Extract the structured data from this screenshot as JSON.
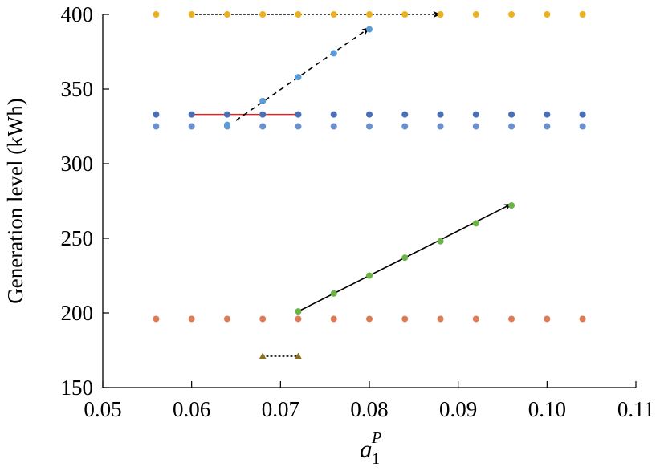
{
  "chart_data": {
    "type": "scatter",
    "title": "",
    "xlabel": {
      "base": "a",
      "subscript": "1",
      "superscript": "P"
    },
    "ylabel": "Generation level (kWh)",
    "xlim": [
      0.05,
      0.11
    ],
    "ylim": [
      150,
      400
    ],
    "x_ticks": [
      {
        "value": 0.05,
        "label": "0.05"
      },
      {
        "value": 0.06,
        "label": "0.06"
      },
      {
        "value": 0.07,
        "label": "0.07"
      },
      {
        "value": 0.08,
        "label": "0.08"
      },
      {
        "value": 0.09,
        "label": "0.09"
      },
      {
        "value": 0.1,
        "label": "0.10"
      },
      {
        "value": 0.11,
        "label": "0.11"
      }
    ],
    "y_ticks": [
      {
        "value": 150,
        "label": "150"
      },
      {
        "value": 200,
        "label": "200"
      },
      {
        "value": 250,
        "label": "250"
      },
      {
        "value": 300,
        "label": "300"
      },
      {
        "value": 350,
        "label": "350"
      },
      {
        "value": 400,
        "label": "400"
      }
    ],
    "grid": false,
    "series": [
      {
        "color": "#EDB120",
        "marker": "circle",
        "points": [
          [
            0.056,
            400
          ],
          [
            0.06,
            400
          ],
          [
            0.064,
            400
          ],
          [
            0.068,
            400
          ],
          [
            0.072,
            400
          ],
          [
            0.076,
            400
          ],
          [
            0.08,
            400
          ],
          [
            0.084,
            400
          ],
          [
            0.088,
            400
          ],
          [
            0.092,
            400
          ],
          [
            0.096,
            400
          ],
          [
            0.1,
            400
          ],
          [
            0.104,
            400
          ]
        ]
      },
      {
        "color": "#4A6FB5",
        "marker": "circle",
        "points": [
          [
            0.056,
            333
          ],
          [
            0.06,
            333
          ],
          [
            0.064,
            333
          ],
          [
            0.068,
            333
          ],
          [
            0.072,
            333
          ],
          [
            0.076,
            333
          ],
          [
            0.08,
            333
          ],
          [
            0.084,
            333
          ],
          [
            0.088,
            333
          ],
          [
            0.092,
            333
          ],
          [
            0.096,
            333
          ],
          [
            0.1,
            333
          ],
          [
            0.104,
            333
          ]
        ]
      },
      {
        "color": "#6C8FD0",
        "marker": "circle",
        "points": [
          [
            0.056,
            325
          ],
          [
            0.06,
            325
          ],
          [
            0.064,
            325
          ],
          [
            0.068,
            325
          ],
          [
            0.072,
            325
          ],
          [
            0.076,
            325
          ],
          [
            0.08,
            325
          ],
          [
            0.084,
            325
          ],
          [
            0.088,
            325
          ],
          [
            0.092,
            325
          ],
          [
            0.096,
            325
          ],
          [
            0.1,
            325
          ],
          [
            0.104,
            325
          ]
        ]
      },
      {
        "color": "#5B9BD5",
        "marker": "circle",
        "points": [
          [
            0.064,
            326
          ],
          [
            0.068,
            342
          ],
          [
            0.072,
            358
          ],
          [
            0.076,
            374
          ],
          [
            0.08,
            390
          ]
        ]
      },
      {
        "color": "#E07A55",
        "marker": "circle",
        "points": [
          [
            0.056,
            196
          ],
          [
            0.06,
            196
          ],
          [
            0.064,
            196
          ],
          [
            0.068,
            196
          ],
          [
            0.072,
            196
          ],
          [
            0.076,
            196
          ],
          [
            0.08,
            196
          ],
          [
            0.084,
            196
          ],
          [
            0.088,
            196
          ],
          [
            0.092,
            196
          ],
          [
            0.096,
            196
          ],
          [
            0.1,
            196
          ],
          [
            0.104,
            196
          ]
        ]
      },
      {
        "color": "#6AB344",
        "marker": "circle",
        "points": [
          [
            0.072,
            201
          ],
          [
            0.076,
            213
          ],
          [
            0.08,
            225
          ],
          [
            0.084,
            237
          ],
          [
            0.088,
            248
          ],
          [
            0.092,
            260
          ],
          [
            0.096,
            272
          ]
        ]
      },
      {
        "color": "#8B6F1E",
        "marker": "triangle",
        "points": [
          [
            0.068,
            171
          ],
          [
            0.072,
            171
          ]
        ]
      }
    ],
    "lines": [
      {
        "color": "#D62728",
        "style": "solid",
        "arrow": false,
        "from": [
          0.06,
          333
        ],
        "to": [
          0.072,
          333
        ]
      },
      {
        "color": "#000000",
        "style": "dashed",
        "arrow": true,
        "from": [
          0.065,
          329
        ],
        "to": [
          0.08,
          391
        ]
      },
      {
        "color": "#000000",
        "style": "dotted",
        "arrow": true,
        "from": [
          0.06,
          400
        ],
        "to": [
          0.088,
          400
        ]
      },
      {
        "color": "#000000",
        "style": "solid",
        "arrow": true,
        "from": [
          0.072,
          201
        ],
        "to": [
          0.096,
          273
        ]
      },
      {
        "color": "#000000",
        "style": "dotted",
        "arrow": false,
        "from": [
          0.068,
          171
        ],
        "to": [
          0.072,
          171
        ]
      }
    ]
  }
}
